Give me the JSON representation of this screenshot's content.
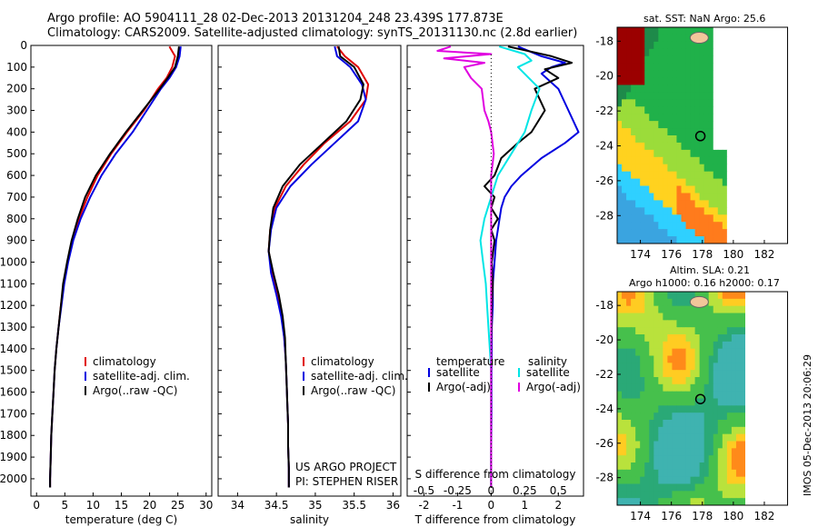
{
  "header": {
    "line1": "Argo profile: AO 5904111_28 02-Dec-2013 20131204_248 23.439S 177.873E",
    "line2": "Climatology: CARS2009. Satellite-adjusted climatology: synTS_20131130.nc (2.8d earlier)"
  },
  "map_top": {
    "title": "sat. SST: NaN Argo: 25.6"
  },
  "map_bottom": {
    "title1": "Altim. SLA: 0.21",
    "title2": "Argo h1000: 0.16 h2000: 0.17"
  },
  "stamp": "IMOS 05-Dec-2013 20:06:29",
  "project": {
    "line1": "US ARGO PROJECT",
    "line2": "PI: STEPHEN RISER"
  },
  "colors": {
    "clim": "#e00000",
    "sat": "#0000e0",
    "argo": "#000000",
    "sal_sat": "#00e5e5",
    "sal_argo": "#e000e0"
  },
  "chart_data": [
    {
      "type": "line",
      "xlabel": "temperature (deg C)",
      "ylabel": "",
      "xlim": [
        -1,
        31
      ],
      "ylim": [
        2080,
        0
      ],
      "xticks": [
        0,
        5,
        10,
        15,
        20,
        25,
        30
      ],
      "yticks": [
        0,
        100,
        200,
        300,
        400,
        500,
        600,
        700,
        800,
        900,
        1000,
        1100,
        1200,
        1300,
        1400,
        1500,
        1600,
        1700,
        1800,
        1900,
        2000
      ],
      "legend": [
        "climatology",
        "satellite-adj. clim.",
        "Argo(..raw -QC)"
      ],
      "series": [
        {
          "name": "climatology",
          "color": "#e00000",
          "points": [
            [
              23.5,
              5
            ],
            [
              24.5,
              50
            ],
            [
              24.0,
              100
            ],
            [
              23.0,
              150
            ],
            [
              21.5,
              200
            ],
            [
              19.0,
              300
            ],
            [
              16.0,
              400
            ],
            [
              13.2,
              500
            ],
            [
              10.8,
              600
            ],
            [
              9.0,
              700
            ],
            [
              7.5,
              800
            ],
            [
              6.3,
              900
            ],
            [
              5.5,
              1000
            ],
            [
              4.8,
              1100
            ],
            [
              4.3,
              1200
            ],
            [
              3.9,
              1300
            ],
            [
              3.5,
              1400
            ],
            [
              3.2,
              1500
            ],
            [
              3.0,
              1600
            ],
            [
              2.8,
              1700
            ],
            [
              2.6,
              1800
            ],
            [
              2.5,
              1900
            ],
            [
              2.4,
              2000
            ],
            [
              2.4,
              2040
            ]
          ]
        },
        {
          "name": "satellite-adj. clim.",
          "color": "#0000e0",
          "points": [
            [
              25.5,
              5
            ],
            [
              25.3,
              50
            ],
            [
              24.7,
              100
            ],
            [
              23.5,
              150
            ],
            [
              22.0,
              200
            ],
            [
              19.5,
              300
            ],
            [
              17.0,
              400
            ],
            [
              14.0,
              500
            ],
            [
              11.5,
              600
            ],
            [
              9.5,
              700
            ],
            [
              7.8,
              800
            ],
            [
              6.5,
              900
            ],
            [
              5.6,
              1000
            ],
            [
              4.9,
              1100
            ],
            [
              4.4,
              1200
            ],
            [
              3.9,
              1300
            ],
            [
              3.5,
              1400
            ],
            [
              3.2,
              1500
            ],
            [
              3.0,
              1600
            ],
            [
              2.8,
              1700
            ],
            [
              2.6,
              1800
            ],
            [
              2.5,
              1900
            ],
            [
              2.4,
              2000
            ],
            [
              2.4,
              2040
            ]
          ]
        },
        {
          "name": "Argo(..raw -QC)",
          "color": "#000000",
          "points": [
            [
              25.2,
              5
            ],
            [
              25.0,
              50
            ],
            [
              24.5,
              100
            ],
            [
              23.2,
              150
            ],
            [
              21.8,
              200
            ],
            [
              18.8,
              300
            ],
            [
              15.8,
              400
            ],
            [
              13.0,
              500
            ],
            [
              10.5,
              600
            ],
            [
              8.6,
              700
            ],
            [
              7.3,
              800
            ],
            [
              6.2,
              900
            ],
            [
              5.4,
              1000
            ],
            [
              4.7,
              1100
            ],
            [
              4.3,
              1200
            ],
            [
              3.9,
              1300
            ],
            [
              3.5,
              1400
            ],
            [
              3.2,
              1500
            ],
            [
              3.0,
              1600
            ],
            [
              2.8,
              1700
            ],
            [
              2.6,
              1800
            ],
            [
              2.5,
              1900
            ],
            [
              2.4,
              2000
            ],
            [
              2.4,
              2040
            ]
          ]
        }
      ]
    },
    {
      "type": "line",
      "xlabel": "salinity",
      "ylabel": "",
      "xlim": [
        33.75,
        36.1
      ],
      "ylim": [
        2080,
        0
      ],
      "xticks": [
        34,
        34.5,
        35,
        35.5,
        36
      ],
      "xticklabels": [
        "34",
        "34.5",
        "35",
        "35.5",
        "36"
      ],
      "legend": [
        "climatology",
        "satellite-adj. clim.",
        "Argo(..raw -QC)"
      ],
      "series": [
        {
          "name": "climatology",
          "color": "#e00000",
          "points": [
            [
              35.28,
              5
            ],
            [
              35.38,
              50
            ],
            [
              35.55,
              100
            ],
            [
              35.68,
              180
            ],
            [
              35.65,
              250
            ],
            [
              35.45,
              350
            ],
            [
              35.12,
              450
            ],
            [
              34.85,
              550
            ],
            [
              34.62,
              650
            ],
            [
              34.48,
              750
            ],
            [
              34.42,
              850
            ],
            [
              34.4,
              950
            ],
            [
              34.45,
              1050
            ],
            [
              34.52,
              1150
            ],
            [
              34.57,
              1250
            ],
            [
              34.6,
              1350
            ],
            [
              34.62,
              1450
            ],
            [
              34.63,
              1550
            ],
            [
              34.64,
              1650
            ],
            [
              34.65,
              1750
            ],
            [
              34.65,
              1850
            ],
            [
              34.66,
              1950
            ],
            [
              34.66,
              2040
            ]
          ]
        },
        {
          "name": "satellite-adj. clim.",
          "color": "#0000e0",
          "points": [
            [
              35.25,
              5
            ],
            [
              35.28,
              50
            ],
            [
              35.45,
              100
            ],
            [
              35.6,
              180
            ],
            [
              35.65,
              250
            ],
            [
              35.55,
              350
            ],
            [
              35.25,
              450
            ],
            [
              34.95,
              550
            ],
            [
              34.68,
              650
            ],
            [
              34.5,
              750
            ],
            [
              34.43,
              850
            ],
            [
              34.4,
              950
            ],
            [
              34.43,
              1050
            ],
            [
              34.5,
              1150
            ],
            [
              34.56,
              1250
            ],
            [
              34.6,
              1350
            ],
            [
              34.62,
              1450
            ],
            [
              34.63,
              1550
            ],
            [
              34.64,
              1650
            ],
            [
              34.65,
              1750
            ],
            [
              34.65,
              1850
            ],
            [
              34.66,
              1950
            ],
            [
              34.66,
              2040
            ]
          ]
        },
        {
          "name": "Argo(..raw -QC)",
          "color": "#000000",
          "points": [
            [
              35.3,
              5
            ],
            [
              35.32,
              50
            ],
            [
              35.5,
              100
            ],
            [
              35.62,
              180
            ],
            [
              35.58,
              250
            ],
            [
              35.4,
              350
            ],
            [
              35.1,
              450
            ],
            [
              34.8,
              550
            ],
            [
              34.58,
              650
            ],
            [
              34.46,
              750
            ],
            [
              34.42,
              850
            ],
            [
              34.4,
              950
            ],
            [
              34.46,
              1050
            ],
            [
              34.53,
              1150
            ],
            [
              34.58,
              1250
            ],
            [
              34.61,
              1350
            ],
            [
              34.62,
              1450
            ],
            [
              34.63,
              1550
            ],
            [
              34.64,
              1650
            ],
            [
              34.65,
              1750
            ],
            [
              34.65,
              1850
            ],
            [
              34.66,
              1950
            ],
            [
              34.66,
              2040
            ]
          ]
        }
      ]
    },
    {
      "type": "line",
      "xlabel": "T difference from climatology",
      "xlabel2": "S difference from climatology",
      "ylim": [
        2080,
        0
      ],
      "xlim": [
        -2.5,
        2.75
      ],
      "xticks": [
        -2,
        -1,
        0,
        1,
        2
      ],
      "sticks": [
        -0.5,
        -0.25,
        0,
        0.25,
        0.5
      ],
      "sticklabels": [
        "-0.5",
        "-0.25",
        "0",
        "0.25",
        "0.5"
      ],
      "legend_headers": [
        "temperature",
        "salinity"
      ],
      "legend": [
        "satellite",
        "Argo(-adj)",
        "satellite",
        "Argo(-adj)"
      ],
      "series": [
        {
          "name": "satellite",
          "color": "#0000e0",
          "points": [
            [
              0.8,
              5
            ],
            [
              1.5,
              50
            ],
            [
              2.2,
              80
            ],
            [
              1.8,
              100
            ],
            [
              1.5,
              130
            ],
            [
              2.0,
              200
            ],
            [
              2.3,
              300
            ],
            [
              2.6,
              400
            ],
            [
              2.2,
              450
            ],
            [
              1.5,
              520
            ],
            [
              0.9,
              600
            ],
            [
              0.6,
              650
            ],
            [
              0.4,
              700
            ],
            [
              0.3,
              750
            ],
            [
              0.25,
              800
            ],
            [
              0.2,
              850
            ],
            [
              0.15,
              900
            ],
            [
              0.1,
              1000
            ],
            [
              0.05,
              1100
            ],
            [
              0.05,
              1200
            ],
            [
              0.02,
              1300
            ],
            [
              0.02,
              1400
            ],
            [
              0.01,
              1500
            ],
            [
              0.01,
              1700
            ],
            [
              0,
              1900
            ],
            [
              0,
              2040
            ]
          ]
        },
        {
          "name": "Argo(-adj)",
          "color": "#000000",
          "points": [
            [
              0.5,
              5
            ],
            [
              1.8,
              50
            ],
            [
              2.4,
              80
            ],
            [
              1.6,
              110
            ],
            [
              2.0,
              150
            ],
            [
              1.3,
              200
            ],
            [
              1.6,
              300
            ],
            [
              1.4,
              350
            ],
            [
              1.2,
              400
            ],
            [
              0.8,
              450
            ],
            [
              0.3,
              520
            ],
            [
              0.1,
              600
            ],
            [
              -0.2,
              650
            ],
            [
              0.1,
              700
            ],
            [
              0.0,
              750
            ],
            [
              0.2,
              800
            ],
            [
              0.0,
              850
            ],
            [
              0.1,
              900
            ],
            [
              0.02,
              1000
            ],
            [
              0.05,
              1100
            ],
            [
              0.02,
              1200
            ],
            [
              0.01,
              1300
            ],
            [
              0.0,
              1400
            ],
            [
              0.0,
              1600
            ],
            [
              0.0,
              1800
            ],
            [
              0.0,
              2040
            ]
          ]
        },
        {
          "name": "salinity satellite",
          "color": "#00e5e5",
          "points": [
            [
              0.06,
              5
            ],
            [
              0.25,
              40
            ],
            [
              0.3,
              70
            ],
            [
              0.2,
              100
            ],
            [
              0.36,
              200
            ],
            [
              0.3,
              300
            ],
            [
              0.25,
              400
            ],
            [
              0.15,
              500
            ],
            [
              0.05,
              600
            ],
            [
              0.0,
              700
            ],
            [
              -0.05,
              800
            ],
            [
              -0.08,
              900
            ],
            [
              -0.06,
              1000
            ],
            [
              -0.04,
              1100
            ],
            [
              -0.03,
              1200
            ],
            [
              -0.02,
              1300
            ],
            [
              -0.01,
              1400
            ],
            [
              0.0,
              1500
            ],
            [
              0.0,
              1700
            ],
            [
              0.0,
              2040
            ]
          ]
        },
        {
          "name": "salinity Argo(-adj)",
          "color": "#e000e0",
          "points": [
            [
              -0.3,
              5
            ],
            [
              -0.4,
              25
            ],
            [
              0.0,
              40
            ],
            [
              -0.35,
              60
            ],
            [
              -0.05,
              80
            ],
            [
              -0.2,
              100
            ],
            [
              -0.15,
              150
            ],
            [
              -0.07,
              200
            ],
            [
              -0.05,
              300
            ],
            [
              -0.02,
              350
            ],
            [
              0.0,
              400
            ],
            [
              0.02,
              500
            ],
            [
              0.0,
              600
            ],
            [
              0.0,
              800
            ],
            [
              0.0,
              1000
            ],
            [
              0.0,
              1200
            ],
            [
              0.0,
              1500
            ],
            [
              0.0,
              2040
            ]
          ]
        }
      ]
    }
  ],
  "maps": [
    {
      "xticks": [
        "174",
        "176",
        "178",
        "180",
        "182"
      ],
      "yticks": [
        "-18",
        "-20",
        "-22",
        "-24",
        "-26",
        "-28"
      ]
    },
    {
      "xticks": [
        "174",
        "176",
        "178",
        "180",
        "182"
      ],
      "yticks": [
        "-18",
        "-20",
        "-22",
        "-24",
        "-26",
        "-28"
      ]
    }
  ]
}
